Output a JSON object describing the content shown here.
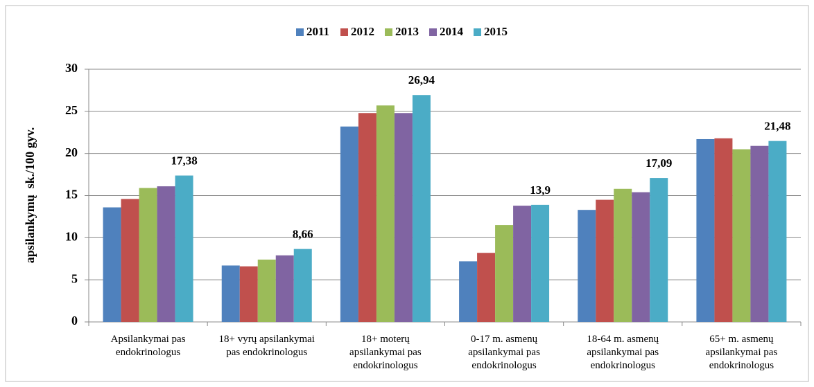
{
  "chart_data": {
    "type": "bar",
    "y_label": "apsilankymų  sk./100 gyv.",
    "categories": [
      "Apsilankymai pas endokrinologus",
      "18+ vyrų apsilankymai pas endokrinologus",
      "18+ moterų apsilankymai pas endokrinologus",
      "0-17 m. asmenų apsilankymai pas endokrinologus",
      "18-64 m. asmenų apsilankymai pas endokrinologus",
      "65+ m. asmenų apsilankymai pas endokrinologus"
    ],
    "series": [
      {
        "name": "2011",
        "color": "#4f81bd",
        "values": [
          13.6,
          6.7,
          23.2,
          7.2,
          13.3,
          21.7
        ]
      },
      {
        "name": "2012",
        "color": "#c0504d",
        "values": [
          14.6,
          6.6,
          24.8,
          8.2,
          14.5,
          21.8
        ]
      },
      {
        "name": "2013",
        "color": "#9bbb59",
        "values": [
          15.9,
          7.4,
          25.7,
          11.5,
          15.8,
          20.5
        ]
      },
      {
        "name": "2014",
        "color": "#8064a2",
        "values": [
          16.1,
          7.9,
          24.8,
          13.8,
          15.4,
          20.9
        ]
      },
      {
        "name": "2015",
        "color": "#4bacc6",
        "values": [
          17.38,
          8.66,
          26.94,
          13.9,
          17.09,
          21.48
        ],
        "value_labels": [
          "17,38",
          "8,66",
          "26,94",
          "13,9",
          "17,09",
          "21,48"
        ]
      }
    ],
    "ylim": [
      0,
      30
    ],
    "yticks": [
      0,
      5,
      10,
      15,
      20,
      25,
      30
    ],
    "grid": true,
    "legend": "top"
  }
}
